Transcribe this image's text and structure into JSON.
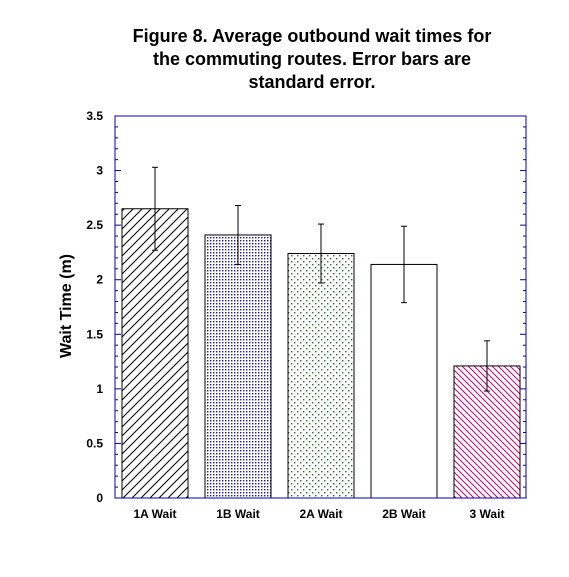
{
  "chart_data": {
    "type": "bar",
    "title_lines": [
      "Figure 8. Average outbound wait times for",
      "the commuting routes. Error bars are",
      "standard error."
    ],
    "xlabel": "",
    "ylabel": "Wait Time (m)",
    "ylim": [
      0,
      3.5
    ],
    "yticks": [
      "0",
      "0.5",
      "1",
      "1.5",
      "2",
      "2.5",
      "3",
      "3.5"
    ],
    "categories": [
      "1A Wait",
      "1B Wait",
      "2A Wait",
      "2B Wait",
      "3 Wait"
    ],
    "series": [
      {
        "values": [
          2.65,
          2.41,
          2.24,
          2.14,
          1.21
        ],
        "error": [
          0.38,
          0.27,
          0.27,
          0.35,
          0.23
        ]
      }
    ],
    "bar_styles": [
      "diagonal-hatch",
      "dense-dots",
      "sparse-dots",
      "none",
      "reverse-diagonal-hatch"
    ],
    "colors": {
      "frame": "#0000aa",
      "bar_outline": "#000000",
      "hatch_1A": "#000000",
      "dots_1B": "#1a1a8c",
      "dots_2A": "#2a6a2a",
      "hatch_3": "#cc0077"
    },
    "grid": false,
    "legend": "none"
  }
}
